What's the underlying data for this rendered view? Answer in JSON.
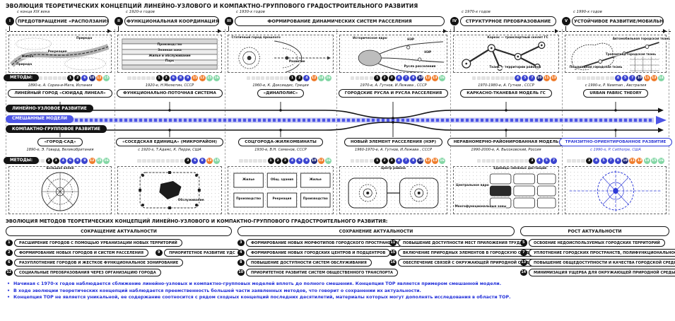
{
  "title": "ЭВОЛЮЦИЯ ТЕОРЕТИЧЕСКИХ КОНЦЕПЦИЙ ЛИНЕЙНО-УЗЛОВОГО И КОМПАКТНО-ГРУППОВОГО ГРАДОСТРОИТЕЛЬНОГО РАЗВИТИЯ",
  "methods_label": "МЕТОДЫ:",
  "stages": [
    {
      "numeral": "I",
      "era": "с конца XIX века",
      "label": "ПРЕДОТВРАЩЕНИЕ «РАСПОЛЗАНИЯ»"
    },
    {
      "numeral": "II",
      "era": "с 1920-х годов",
      "label": "ФУНКЦИОНАЛЬНАЯ КООРДИНАЦИЯ"
    },
    {
      "numeral": "III",
      "era": "с 1930-х годов",
      "label": "ФОРМИРОВАНИЕ ДИНАМИЧЕСКИХ СИСТЕМ РАССЕЛЕНИЯ"
    },
    {
      "numeral": "IV",
      "era": "с 1970-х годов",
      "label": "СТРУКТУРНОЕ ПРЕОБРАЗОВАНИЕ"
    },
    {
      "numeral": "V",
      "era": "с 1990-х годов",
      "label": "УСТОЙЧИВОЕ РАЗВИТИЕ/МОБИЛЬНОСТЬ"
    }
  ],
  "bands": {
    "linear": "ЛИНЕЙНО-УЗЛОВОЕ РАЗВИТИЕ",
    "mixed": "СМЕШАННЫЕ МОДЕЛИ",
    "compact": "КОМПАКТНО-ГРУППОВОЕ РАЗВИТИЕ"
  },
  "top_concepts": [
    {
      "era": "1890-е, А. Сориа-и-Мата, Испания",
      "label": "ЛИНЕЙНЫЙ ГОРОД «СЮИДАД ЛИНЕАЛ»",
      "badges": [
        1,
        2,
        6,
        10,
        12,
        15
      ]
    },
    {
      "era": "1920-е, Н.Милютин, СССР",
      "label": "ФУНКЦИОНАЛЬНО-ПОТОЧНАЯ СИСТЕМА",
      "badges": [
        1,
        2,
        6,
        8,
        9,
        11,
        12,
        15,
        16
      ]
    },
    {
      "era": "1960-е, К. Доксиадис, Греция",
      "label": "«ДИНАПОЛИС»",
      "badges": [
        1,
        2,
        4,
        12,
        14,
        16
      ]
    },
    {
      "era": "1970-е, А. Гутнов, И.Лежава , СССР",
      "label": "ГОРОДСКИЕ РУСЛА И РУСЛА РАССЕЛЕНИЯ",
      "badges": [
        1,
        2,
        3,
        4,
        7,
        8,
        10,
        12,
        13,
        16
      ]
    },
    {
      "era": "1970-1980-е, А. Гутнов , СССР",
      "label": "КАРКАСНО-ТКАНЕВАЯ МОДЕЛЬ ГС",
      "badges": [
        4,
        5,
        7,
        10,
        11,
        13
      ]
    },
    {
      "era": "с 1990-х, P. Newman , Австралия",
      "label": "URBAN FABRIC THEORY",
      "badges": [
        4,
        5,
        7,
        10,
        11,
        13,
        14
      ]
    }
  ],
  "bottom_concepts": [
    {
      "label": "«ГОРОД-САД»",
      "era": "1890-е, Э. Говард, Великобритания",
      "badges": [
        2,
        3,
        4,
        6,
        8,
        9,
        12,
        15,
        16
      ]
    },
    {
      "label": "«СОСЕДСКАЯ ЕДИНИЦА» (МИКРОРАЙОН)",
      "era": "с 1920-х, Т.Адамс, К. Перри, США",
      "badges": [
        3,
        6,
        8,
        13,
        15
      ]
    },
    {
      "label": "СОЦГОРОДА-ЖИЛКОМБИНАТЫ",
      "era": "1930-е, В.Н. Семенов, СССР",
      "badges": [
        1,
        2,
        3,
        4,
        6,
        8,
        10,
        12,
        16
      ]
    },
    {
      "label": "НОВЫЙ ЭЛЕМЕНТ РАССЕЛЕНИЯ (НЭР)",
      "era": "1960-1970-е, А. Гутнов, И.Лежава , СССР",
      "badges": [
        1,
        2,
        3,
        4,
        7,
        8,
        10,
        12,
        13,
        16
      ]
    },
    {
      "label": "НЕРАВНОМЕРНО-РАЙОНИРОВАННАЯ МОДЕЛЬ",
      "era": "1990-2000-е, А. Высоковский, Россия",
      "badges": [
        3,
        4,
        5,
        7
      ]
    },
    {
      "label": "ТРАНЗИТНО-ОРИЕНТИРОВАННОЕ РАЗВИТИЕ",
      "era": "с 1990-х, P. Calthorpe, США",
      "badges": [
        3,
        4,
        5,
        7,
        8,
        10,
        11,
        13,
        14,
        15,
        16
      ],
      "highlight": true
    }
  ],
  "panels_top": [
    {
      "labels": [
        "Природа",
        "Рекреация",
        "Жилье",
        "Природа"
      ]
    },
    {
      "labels": [
        "Производство",
        "Зеленая зона",
        "Жилье и обслуживание",
        "Парк"
      ]
    },
    {
      "labels": [
        "Статичный город прошлого",
        "Развитие"
      ]
    },
    {
      "labels": [
        "Историческое ядро",
        "НЭР",
        "НЭР",
        "Русла расселения"
      ]
    },
    {
      "labels": [
        "Каркас — транспортный скелет ГС",
        "Ткань — территории районов"
      ]
    },
    {
      "labels": [
        "Автомобильная городская ткань",
        "Транзитная городская ткань",
        "Пешеходная городская ткань"
      ]
    }
  ],
  "panels_bottom": [
    {
      "labels": [
        "Большая аллея"
      ]
    },
    {
      "labels": [
        "Обслуживание"
      ]
    },
    {
      "labels": [
        "Жилье",
        "Общ. здания",
        "Жилье",
        "Производство",
        "Рекреация",
        "Производство"
      ]
    },
    {
      "labels": [
        "Центр района"
      ]
    },
    {
      "labels": [
        "Единицы смежных дистанций",
        "Центральное ядро",
        "Многофункциональные зоны"
      ]
    },
    {
      "labels": []
    }
  ],
  "evolution": {
    "title": "ЭВОЛЮЦИЯ МЕТОДОВ ТЕОРЕТИЧЕСКИХ КОНЦЕПЦИЙ ЛИНЕЙНО-УЗЛОВОГО И КОМПАКТНО-ГРУППОВОГО ГРАДОСТРОИТЕЛЬНОГО РАЗВИТИЯ:",
    "columns": [
      {
        "header": "СОКРАЩЕНИЕ АКТУАЛЬНОСТИ",
        "rows": [
          [
            {
              "n": 1,
              "t": "РАСШИРЕНИЕ ГОРОДОВ С ПОМОЩЬЮ УРБАНИЗАЦИИ НОВЫХ ТЕРРИТОРИЙ"
            }
          ],
          [
            {
              "n": 2,
              "t": "ФОРМИРОВАНИЕ НОВЫХ ГОРОДОВ И СИСТЕМ РАССЕЛЕНИЯ"
            },
            {
              "n": 9,
              "t": "ПРИОРИТЕТНОЕ РАЗВИТИЕ УДС"
            }
          ],
          [
            {
              "n": 6,
              "t": "РАЗУПЛОТНЕНИЕ ГОРОДОВ И ЖЕСТКОЕ ФУНКЦИОНАЛЬНОЕ ЗОНИРОВАНИЕ"
            }
          ],
          [
            {
              "n": 12,
              "t": "СОЦИАЛЬНЫЕ ПРЕОБРАЗОВАНИЯ ЧЕРЕЗ ОРГАНИЗАЦИЮ ГОРОДА"
            }
          ]
        ]
      },
      {
        "header": "СОХРАНЕНИЕ АКТУАЛЬНОСТИ",
        "rows": [
          [
            {
              "n": 3,
              "t": "ФОРМИРОВАНИЕ НОВЫХ МОРФОТИПОВ ГОРОДСКОГО ПРОСТРАНСТВА"
            },
            {
              "n": 11,
              "t": "ПОВЫШЕНИЕ ДОСТУПНОСТИ МЕСТ ПРИЛОЖЕНИЯ ТРУДА"
            }
          ],
          [
            {
              "n": 4,
              "t": "ФОРМИРОВАНИЕ НОВЫХ ГОРОДСКИХ ЦЕНТРОВ И ПОДЦЕНТРОВ"
            },
            {
              "n": 15,
              "t": "ВКЛЮЧЕНИЕ ПРИРОДНЫХ ЭЛЕМЕНТОВ В ГОРОДСКУЮ СРЕДУ"
            }
          ],
          [
            {
              "n": 8,
              "t": "ПОВЫШЕНИЕ ДОСТУПНОСТИ СИСТЕМ ОБСЛУЖИВАНИЯ"
            },
            {
              "n": 16,
              "t": "ОБЕСПЕЧЕНИЕ СВЯЗЕЙ С ОКРУЖАЮЩЕЙ ПРИРОДНОЙ СРЕДОЙ"
            }
          ],
          [
            {
              "n": 10,
              "t": "ПРИОРИТЕТНОЕ РАЗВИТИЕ СИСТЕМ ОБЩЕСТВЕННОГО ТРАНСПОРТА"
            }
          ]
        ]
      },
      {
        "header": "РОСТ АКТУАЛЬНОСТИ",
        "rows": [
          [
            {
              "n": 5,
              "t": "ОСВОЕНИЕ НЕДОИСПОЛЬЗУЕМЫХ ГОРОДСКИХ ТЕРРИТОРИЙ"
            }
          ],
          [
            {
              "n": 7,
              "t": "УПЛОТНЕНИЕ ГОРОДСКИХ ПРОСТРАНСТВ, ПОЛИФУНКЦИОНАЛЬНОСТЬ"
            }
          ],
          [
            {
              "n": 13,
              "t": "ПОВЫШЕНИЕ ОБЩЕДОСТУПНОСТИ И КАЧЕСТВА ГОРОДСКОЙ СРЕДЫ"
            }
          ],
          [
            {
              "n": 14,
              "t": "МИНИМИЗАЦИЯ УЩЕРБА ДЛЯ ОКРУЖАЮЩЕЙ ПРИРОДНОЙ СРЕДЫ"
            }
          ]
        ]
      }
    ]
  },
  "notes": [
    "Начиная с 1970-х годов наблюдается сближение линейно-узловых и компактно-групповых моделей вплоть до полного смешения. Концепция ТОР является примером смешанной модели.",
    "В ходе эволюции теоретических концепций наблюдается преемственность большей части заявленных методов, что говорит о сохранении их актуальности.",
    "Концепция ТОР не является уникальной, ее содержание соотносится с рядом сходных концепций последних десятилетий, материалы которых могут дополнять исследования в области ТОР."
  ],
  "colors": {
    "black": "#141414",
    "accent_blue": "#3a43cf",
    "navy": "#1f2776",
    "orange": "#ef7c2b",
    "green": "#82d6a4",
    "mixed_band": "#4d55e6",
    "note_blue": "#2230da"
  }
}
